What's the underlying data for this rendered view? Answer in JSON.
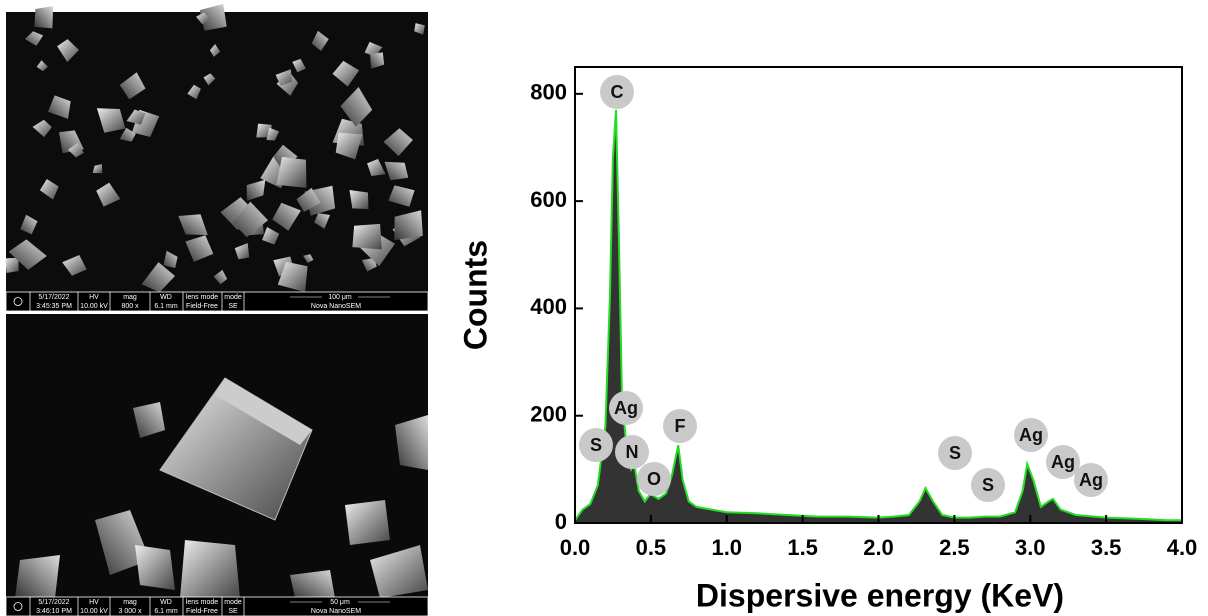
{
  "images": [
    {
      "date": "5/17/2022",
      "time": "3:45:35 PM",
      "hv_label": "HV",
      "hv": "10.00 kV",
      "mag_label": "mag",
      "mag": "800 x",
      "wd_label": "WD",
      "wd": "6.1 mm",
      "lens_label": "lens mode",
      "lens": "Field-Free",
      "mode_label": "mode",
      "mode": "SE",
      "scale": "100 μm",
      "instrument": "Nova NanoSEM"
    },
    {
      "date": "5/17/2022",
      "time": "3:46:10 PM",
      "hv_label": "HV",
      "hv": "10.00 kV",
      "mag_label": "mag",
      "mag": "3 000 x",
      "wd_label": "WD",
      "wd": "6.1 mm",
      "lens_label": "lens mode",
      "lens": "Field-Free",
      "mode_label": "mode",
      "mode": "SE",
      "scale": "50 μm",
      "instrument": "Nova NanoSEM"
    }
  ],
  "chart_data": {
    "type": "area",
    "xlabel": "Dispersive energy (KeV)",
    "ylabel": "Counts",
    "x": [
      0,
      0.05,
      0.1,
      0.15,
      0.2,
      0.23,
      0.25,
      0.27,
      0.29,
      0.31,
      0.34,
      0.37,
      0.39,
      0.42,
      0.46,
      0.5,
      0.52,
      0.55,
      0.6,
      0.64,
      0.68,
      0.71,
      0.75,
      0.8,
      0.9,
      1.0,
      1.2,
      1.4,
      1.6,
      1.8,
      2.0,
      2.1,
      2.2,
      2.27,
      2.31,
      2.36,
      2.42,
      2.5,
      2.6,
      2.7,
      2.8,
      2.9,
      2.95,
      2.98,
      3.02,
      3.07,
      3.12,
      3.15,
      3.2,
      3.3,
      3.5,
      3.7,
      3.9,
      4.0
    ],
    "series": [
      {
        "color": "#22dd22",
        "fill": "#333333",
        "values": [
          5,
          25,
          35,
          70,
          180,
          420,
          680,
          770,
          520,
          230,
          140,
          100,
          110,
          60,
          40,
          55,
          50,
          45,
          55,
          90,
          145,
          80,
          40,
          30,
          25,
          20,
          18,
          15,
          12,
          12,
          10,
          12,
          15,
          40,
          65,
          40,
          15,
          10,
          10,
          12,
          12,
          20,
          60,
          110,
          80,
          30,
          40,
          45,
          25,
          15,
          10,
          8,
          5,
          5
        ]
      }
    ],
    "xlim": [
      0,
      4
    ],
    "ylim": [
      0,
      850
    ],
    "xticks": [
      {
        "value": 0,
        "label": "0.0"
      },
      0.5,
      {
        "value": 1,
        "label": "1.0"
      },
      1.5,
      {
        "value": 2,
        "label": "2.0"
      },
      2.5,
      {
        "value": 3,
        "label": "3.0"
      },
      3.5,
      {
        "value": 4,
        "label": "4.0"
      }
    ],
    "yticks": [
      0,
      200,
      400,
      600,
      800
    ],
    "annotations": [
      "C",
      "Ag",
      "S",
      "N",
      "O",
      "F",
      "S",
      "S",
      "Ag",
      "Ag",
      "Ag"
    ]
  }
}
